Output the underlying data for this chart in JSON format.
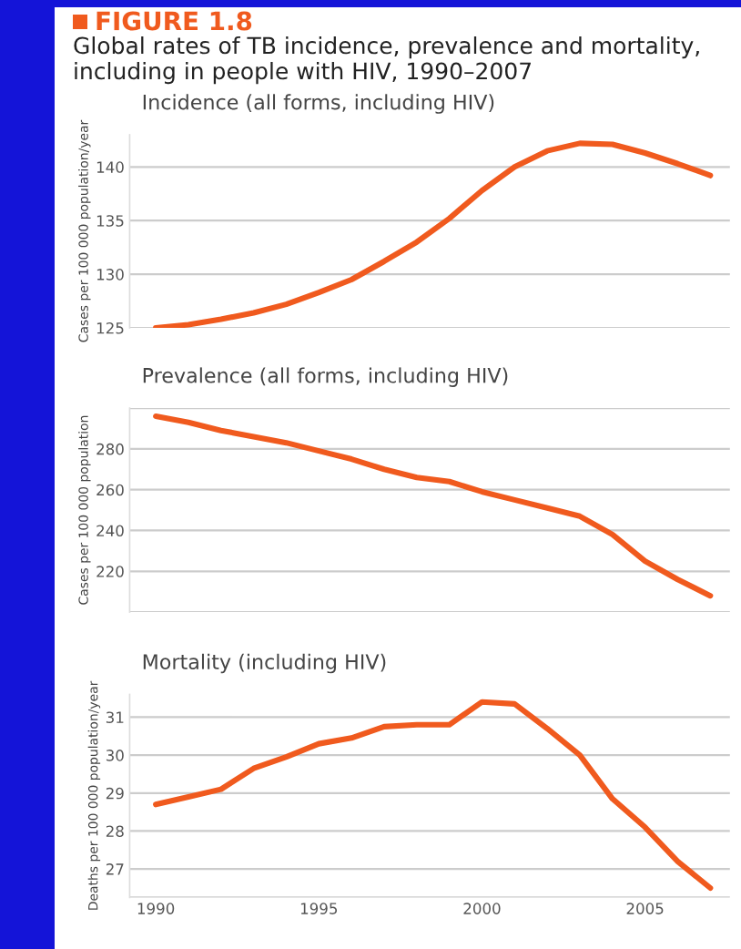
{
  "chart_data": [
    {
      "type": "line",
      "title": "Incidence (all forms, including HIV)",
      "ylabel": "Cases per 100 000 population/year",
      "annotations": [
        "FIGURE 1.8",
        "Global rates of TB incidence, prevalence and mortality, including in people with HIV, 1990–2007"
      ],
      "x": [
        1990,
        1991,
        1992,
        1993,
        1994,
        1995,
        1996,
        1997,
        1998,
        1999,
        2000,
        2001,
        2002,
        2003,
        2004,
        2005,
        2006,
        2007
      ],
      "series": [
        {
          "color": "#f05a1e",
          "values": [
            125,
            125.3,
            125.8,
            126.4,
            127.2,
            128.3,
            129.5,
            131.2,
            133,
            135.2,
            137.8,
            140,
            141.5,
            142.2,
            142.1,
            141.3,
            140.3,
            139.2
          ]
        }
      ],
      "xlim": [
        1989.2,
        2007.6
      ],
      "ylim": [
        125,
        143
      ],
      "yticks": [
        125,
        130,
        135,
        140
      ],
      "grid": "y",
      "tick_labels": "y",
      "line_style": "solid"
    },
    {
      "type": "line",
      "title": "Prevalence (all forms, including HIV)",
      "ylabel": "Cases per 100 000 population",
      "x": [
        1990,
        1991,
        1992,
        1993,
        1994,
        1995,
        1996,
        1997,
        1998,
        1999,
        2000,
        2001,
        2002,
        2003,
        2004,
        2005,
        2006,
        2007
      ],
      "series": [
        {
          "color": "#f05a1e",
          "values": [
            296,
            293,
            289,
            286,
            283,
            279,
            275,
            270,
            266,
            264,
            259,
            255,
            251,
            247,
            238,
            225,
            216,
            208
          ]
        }
      ],
      "xlim": [
        1989.2,
        2007.6
      ],
      "ylim": [
        200,
        300
      ],
      "yticks": [
        {
          "value": 200,
          "label": null
        },
        220,
        240,
        260,
        280,
        {
          "value": 300,
          "label": null
        }
      ],
      "grid": "y",
      "tick_labels": "y",
      "line_style": "solid"
    },
    {
      "type": "line",
      "title": "Mortality (including HIV)",
      "ylabel": "Deaths per 100 000 population/year",
      "x": [
        1990,
        1991,
        1992,
        1993,
        1994,
        1995,
        1996,
        1997,
        1998,
        1999,
        2000,
        2001,
        2002,
        2003,
        2004,
        2005,
        2006,
        2007
      ],
      "series": [
        {
          "color": "#f05a1e",
          "values": [
            28.7,
            28.9,
            29.1,
            29.65,
            29.95,
            30.3,
            30.45,
            30.75,
            30.8,
            30.8,
            31.4,
            31.35,
            30.7,
            30.0,
            28.85,
            28.1,
            27.2,
            26.5
          ]
        }
      ],
      "xlim": [
        1989.2,
        2007.6
      ],
      "ylim": [
        26.25,
        31.6
      ],
      "xticks": [
        1990,
        1995,
        2000,
        2005
      ],
      "yticks": [
        {
          "value": 26.25,
          "label": null
        },
        27,
        28,
        29,
        30,
        31
      ],
      "grid": "y",
      "line_style": "solid"
    }
  ]
}
